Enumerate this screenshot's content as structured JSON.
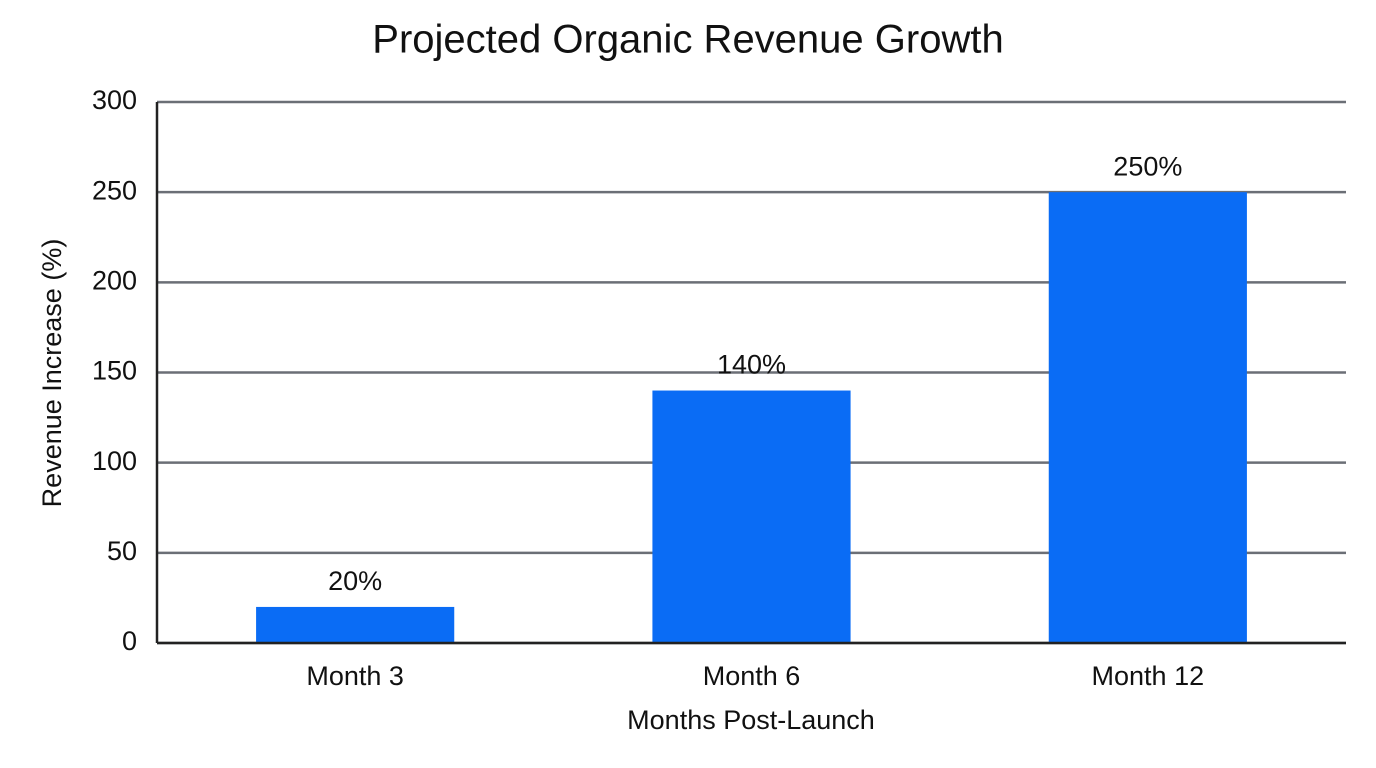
{
  "chart_data": {
    "type": "bar",
    "title": "Projected Organic Revenue Growth",
    "x_label": "Months Post-Launch",
    "y_label": "Revenue Increase (%)",
    "categories": [
      "Month 3",
      "Month 6",
      "Month 12"
    ],
    "values": [
      20,
      140,
      250
    ],
    "value_labels": [
      "20%",
      "140%",
      "250%"
    ],
    "color": "#0a6cf5",
    "ylim": [
      0,
      300
    ],
    "yticks": [
      0,
      50,
      100,
      150,
      200,
      250,
      300
    ],
    "grid": true
  }
}
